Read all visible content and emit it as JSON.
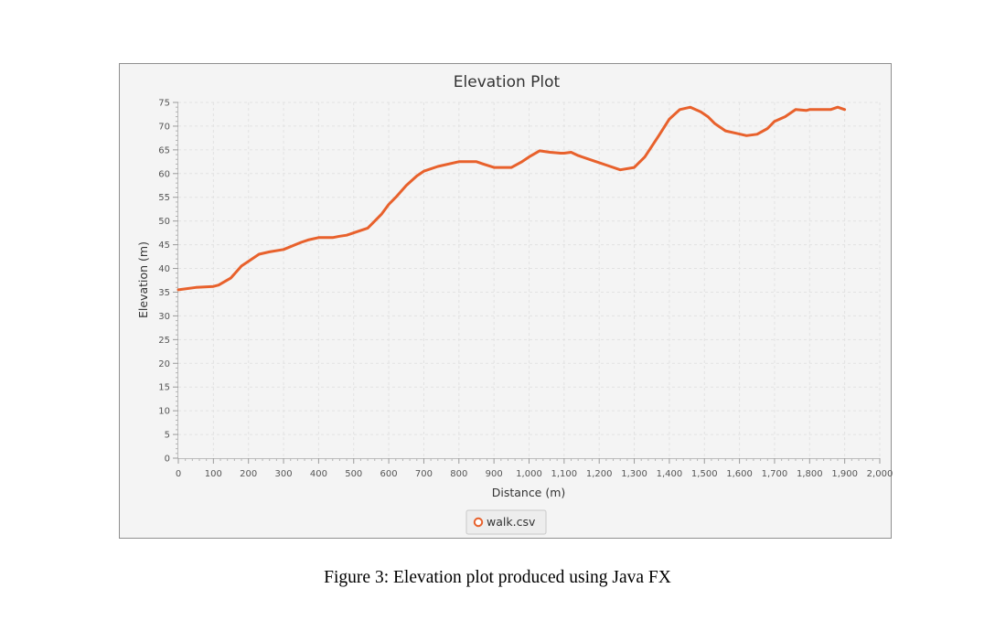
{
  "chart_data": {
    "type": "line",
    "title": "Elevation Plot",
    "xlabel": "Distance (m)",
    "ylabel": "Elevation (m)",
    "xlim": [
      0,
      2000
    ],
    "ylim": [
      0,
      75
    ],
    "x_ticks": [
      0,
      100,
      200,
      300,
      400,
      500,
      600,
      700,
      800,
      900,
      1000,
      1100,
      1200,
      1300,
      1400,
      1500,
      1600,
      1700,
      1800,
      1900,
      2000
    ],
    "x_tick_labels": [
      "0",
      "100",
      "200",
      "300",
      "400",
      "500",
      "600",
      "700",
      "800",
      "900",
      "1,000",
      "1,100",
      "1,200",
      "1,300",
      "1,400",
      "1,500",
      "1,600",
      "1,700",
      "1,800",
      "1,900",
      "2,000"
    ],
    "y_ticks": [
      0,
      5,
      10,
      15,
      20,
      25,
      30,
      35,
      40,
      45,
      50,
      55,
      60,
      65,
      70,
      75
    ],
    "y_tick_labels": [
      "0",
      "5",
      "10",
      "15",
      "20",
      "25",
      "30",
      "35",
      "40",
      "45",
      "50",
      "55",
      "60",
      "65",
      "70",
      "75"
    ],
    "grid": true,
    "legend_position": "bottom-center",
    "series": [
      {
        "name": "walk.csv",
        "color": "#e8612c",
        "x": [
          0,
          50,
          100,
          115,
          150,
          180,
          200,
          230,
          260,
          300,
          350,
          370,
          400,
          440,
          460,
          480,
          500,
          540,
          560,
          580,
          600,
          620,
          650,
          680,
          700,
          740,
          800,
          850,
          870,
          900,
          950,
          980,
          1000,
          1030,
          1060,
          1090,
          1100,
          1120,
          1140,
          1180,
          1220,
          1260,
          1300,
          1330,
          1370,
          1400,
          1430,
          1460,
          1490,
          1510,
          1530,
          1560,
          1590,
          1620,
          1650,
          1680,
          1700,
          1730,
          1760,
          1790,
          1800,
          1830,
          1860,
          1880,
          1900
        ],
        "y": [
          35.5,
          36.0,
          36.2,
          36.5,
          38.0,
          40.5,
          41.5,
          43.0,
          43.5,
          44.0,
          45.5,
          46.0,
          46.5,
          46.5,
          46.8,
          47.0,
          47.5,
          48.5,
          50.0,
          51.5,
          53.5,
          55.0,
          57.5,
          59.5,
          60.5,
          61.5,
          62.5,
          62.5,
          62.0,
          61.3,
          61.3,
          62.5,
          63.5,
          64.8,
          64.5,
          64.3,
          64.3,
          64.5,
          63.8,
          62.8,
          61.8,
          60.8,
          61.3,
          63.5,
          68.0,
          71.5,
          73.5,
          74.0,
          73.0,
          72.0,
          70.5,
          69.0,
          68.5,
          68.0,
          68.3,
          69.5,
          71.0,
          72.0,
          73.5,
          73.3,
          73.5,
          73.5,
          73.5,
          74.0,
          73.5
        ]
      }
    ]
  },
  "caption": "Figure 3:  Elevation plot produced using Java FX"
}
